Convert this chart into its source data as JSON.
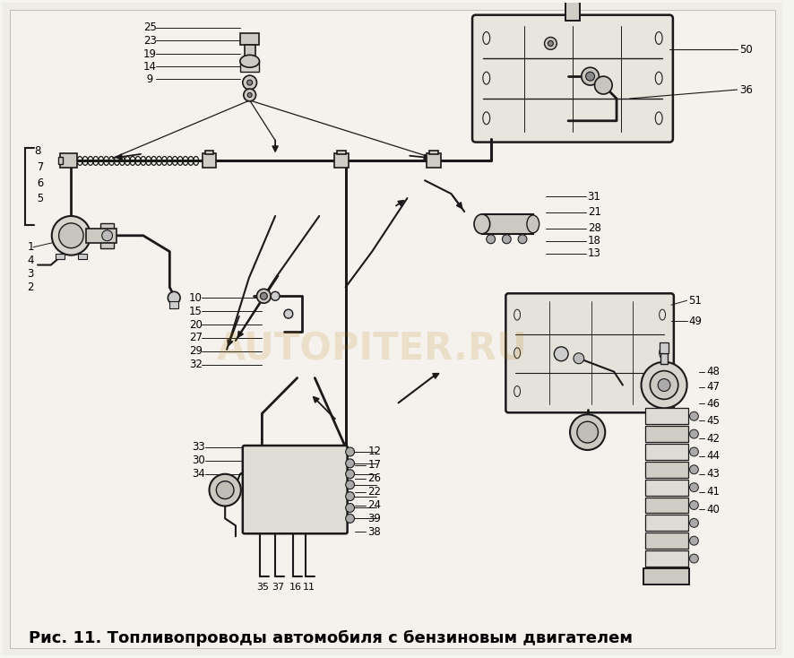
{
  "title_text": "Рис. 11. Топливопроводы автомобиля с бензиновым двигателем",
  "title_fontsize": 13,
  "bg_color": "#f5f5f0",
  "fig_width": 8.86,
  "fig_height": 7.34,
  "dpi": 100,
  "watermark_text": "AUTOPITER.RU",
  "watermark_alpha": 0.15,
  "watermark_fontsize": 30,
  "watermark_color": "#b87800",
  "lc": "#1a1a1a",
  "lw": 1.3
}
